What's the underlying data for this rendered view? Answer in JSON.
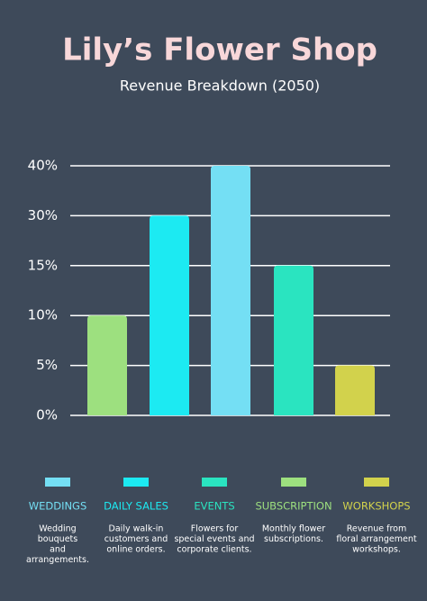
{
  "chart_data": {
    "type": "bar",
    "title": "Lily’s Flower Shop",
    "subtitle": "Revenue Breakdown (2050)",
    "bars": [
      {
        "color": "#9de07f",
        "value": 10
      },
      {
        "color": "#1ceaf2",
        "value": 30
      },
      {
        "color": "#74dff4",
        "value": 40
      },
      {
        "color": "#2ae4c0",
        "value": 15
      },
      {
        "color": "#d2d24c",
        "value": 5
      }
    ],
    "ylim": [
      0,
      40
    ],
    "yticks": [
      {
        "value": 0,
        "label": "0%"
      },
      {
        "value": 5,
        "label": "5%"
      },
      {
        "value": 10,
        "label": "10%"
      },
      {
        "value": 15,
        "label": "15%"
      },
      {
        "value": 30,
        "label": "30%"
      },
      {
        "value": 40,
        "label": "40%"
      }
    ],
    "grid": true,
    "legend": [
      {
        "name": "WEDDINGS",
        "color": "#74dff4",
        "description": [
          "Wedding",
          "bouquets",
          "and",
          "arrangements."
        ]
      },
      {
        "name": "DAILY SALES",
        "color": "#1ceaf2",
        "description": [
          "Daily walk-in",
          "customers and",
          "online orders."
        ]
      },
      {
        "name": "EVENTS",
        "color": "#2ae4c0",
        "description": [
          "Flowers for",
          "special events and",
          "corporate clients."
        ]
      },
      {
        "name": "SUBSCRIPTION",
        "color": "#9de07f",
        "description": [
          "Monthly flower",
          "subscriptions."
        ]
      },
      {
        "name": "WORKSHOPS",
        "color": "#d2d24c",
        "description": [
          "Revenue from",
          "floral arrangement",
          "workshops."
        ]
      }
    ]
  }
}
